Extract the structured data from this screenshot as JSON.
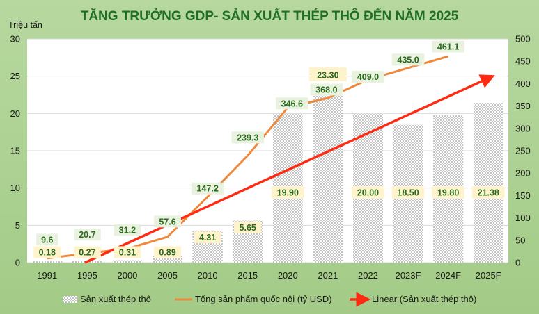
{
  "chart_data": {
    "type": "bar",
    "title": "TĂNG TRƯỞNG GDP- SẢN XUẤT THÉP THÔ ĐẾN NĂM 2025",
    "y_unit_label": "Triệu tấn",
    "categories": [
      "1991",
      "1995",
      "2000",
      "2005",
      "2010",
      "2015",
      "2020",
      "2021",
      "2022",
      "2023F",
      "2024F",
      "2025F"
    ],
    "ylim_left": [
      0,
      30
    ],
    "ylim_right": [
      0,
      500
    ],
    "yticks_left": [
      "0",
      "5",
      "10",
      "15",
      "20",
      "25",
      "30"
    ],
    "yticks_right": [
      "0",
      "50",
      "100",
      "150",
      "200",
      "250",
      "300",
      "350",
      "400",
      "450",
      "500"
    ],
    "series": [
      {
        "name": "Sản xuất thép thô",
        "type": "bar",
        "axis": "left",
        "values": [
          0.18,
          0.27,
          0.31,
          0.89,
          4.31,
          5.65,
          19.9,
          23.3,
          20.0,
          18.5,
          19.8,
          21.38
        ],
        "labels": [
          "0.18",
          "0.27",
          "0.31",
          "0.89",
          "4.31",
          "5.65",
          "19.90",
          "23.30",
          "20.00",
          "18.50",
          "19.80",
          "21.38"
        ]
      },
      {
        "name": "Tổng sản phẩm quốc nội (tỷ USD)",
        "type": "line",
        "axis": "right",
        "color": "#f0883a",
        "values": [
          9.6,
          20.7,
          31.2,
          57.6,
          147.2,
          239.3,
          346.6,
          368.0,
          409.0,
          435.0,
          461.1,
          null
        ],
        "labels": [
          "9.6",
          "20.7",
          "31.2",
          "57.6",
          "147.2",
          "239.3",
          "346.6",
          "368.0",
          "409.0",
          "435.0",
          "461.1",
          ""
        ]
      },
      {
        "name": "Linear (Sản xuất thép thô)",
        "type": "trendline",
        "axis": "left",
        "color": "#ff2a12"
      }
    ],
    "grid": true,
    "legend_position": "bottom"
  }
}
